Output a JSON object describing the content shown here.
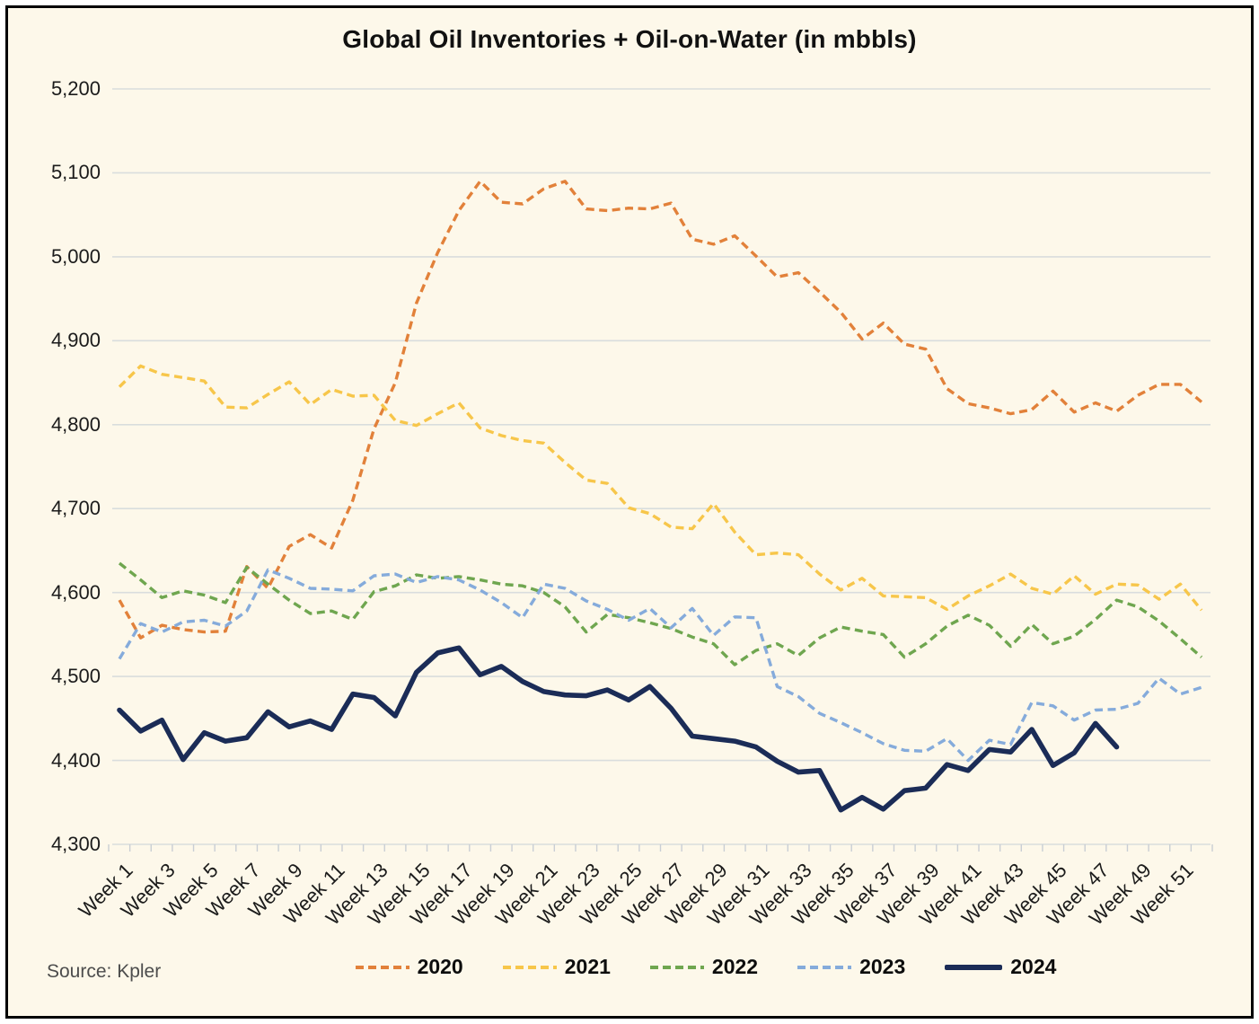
{
  "title": "Global Oil Inventories + Oil-on-Water (in mbbls)",
  "source": "Source: Kpler",
  "colors": {
    "background": "#FDF8EA",
    "gridline": "#D9DDDD",
    "axis_tick": "#C9CED4",
    "text": "#1b1b1b"
  },
  "chart_data": {
    "type": "line",
    "title": "Global Oil Inventories + Oil-on-Water (in mbbls)",
    "xlabel": "",
    "ylabel": "",
    "ylim": [
      4300,
      5200
    ],
    "grid": true,
    "legend_position": "bottom",
    "y_ticks": [
      5200,
      5100,
      5000,
      4900,
      4800,
      4700,
      4600,
      4500,
      4400,
      4300
    ],
    "x_tick_labels": [
      "Week 1",
      "Week 3",
      "Week 5",
      "Week 7",
      "Week 9",
      "Week 11",
      "Week 13",
      "Week 15",
      "Week 17",
      "Week 19",
      "Week 21",
      "Week 23",
      "Week 25",
      "Week 27",
      "Week 29",
      "Week 31",
      "Week 33",
      "Week 35",
      "Week 37",
      "Week 39",
      "Week 41",
      "Week 43",
      "Week 45",
      "Week 47",
      "Week 49",
      "Week 51"
    ],
    "weeks_total": 52,
    "series": [
      {
        "name": "2020",
        "color": "#E2813A",
        "style": "dashed",
        "values": [
          4591,
          4546,
          4561,
          4556,
          4553,
          4554,
          4631,
          4605,
          4655,
          4669,
          4653,
          4710,
          4795,
          4850,
          4945,
          5005,
          5055,
          5090,
          5065,
          5063,
          5081,
          5090,
          5057,
          5055,
          5058,
          5057,
          5064,
          5021,
          5015,
          5025,
          5001,
          4976,
          4981,
          4958,
          4934,
          4902,
          4921,
          4896,
          4890,
          4843,
          4825,
          4820,
          4813,
          4818,
          4840,
          4815,
          4826,
          4816,
          4835,
          4848,
          4848,
          4827
        ]
      },
      {
        "name": "2021",
        "color": "#F7C64A",
        "style": "dashed",
        "values": [
          4845,
          4870,
          4860,
          4856,
          4852,
          4821,
          4820,
          4836,
          4851,
          4824,
          4842,
          4834,
          4835,
          4805,
          4799,
          4813,
          4826,
          4796,
          4787,
          4781,
          4778,
          4755,
          4734,
          4730,
          4701,
          4694,
          4678,
          4676,
          4706,
          4672,
          4645,
          4647,
          4645,
          4622,
          4603,
          4617,
          4596,
          4595,
          4594,
          4580,
          4596,
          4608,
          4622,
          4605,
          4598,
          4620,
          4598,
          4610,
          4609,
          4592,
          4610,
          4579
        ]
      },
      {
        "name": "2022",
        "color": "#6FA64F",
        "style": "dashed",
        "values": [
          4635,
          4615,
          4594,
          4602,
          4597,
          4588,
          4630,
          4610,
          4591,
          4575,
          4578,
          4568,
          4601,
          4608,
          4621,
          4617,
          4619,
          4615,
          4610,
          4608,
          4600,
          4583,
          4553,
          4574,
          4570,
          4564,
          4557,
          4547,
          4539,
          4514,
          4531,
          4539,
          4525,
          4546,
          4559,
          4554,
          4550,
          4523,
          4539,
          4560,
          4573,
          4561,
          4536,
          4562,
          4539,
          4548,
          4568,
          4591,
          4583,
          4566,
          4545,
          4523
        ]
      },
      {
        "name": "2023",
        "color": "#85ABDB",
        "style": "dashed",
        "values": [
          4521,
          4563,
          4553,
          4565,
          4567,
          4560,
          4578,
          4627,
          4617,
          4605,
          4604,
          4602,
          4620,
          4622,
          4612,
          4619,
          4615,
          4603,
          4588,
          4570,
          4610,
          4605,
          4590,
          4580,
          4567,
          4581,
          4558,
          4581,
          4549,
          4571,
          4570,
          4488,
          4476,
          4456,
          4445,
          4433,
          4420,
          4412,
          4411,
          4426,
          4400,
          4424,
          4419,
          4469,
          4465,
          4448,
          4460,
          4461,
          4468,
          4498,
          4479,
          4487
        ]
      },
      {
        "name": "2024",
        "color": "#1B2C57",
        "style": "solid",
        "values": [
          4460,
          4435,
          4448,
          4401,
          4433,
          4423,
          4427,
          4458,
          4440,
          4447,
          4437,
          4479,
          4475,
          4453,
          4505,
          4528,
          4534,
          4502,
          4512,
          4494,
          4482,
          4478,
          4477,
          4484,
          4472,
          4488,
          4462,
          4429,
          4426,
          4423,
          4416,
          4399,
          4386,
          4388,
          4341,
          4356,
          4342,
          4364,
          4367,
          4395,
          4388,
          4413,
          4410,
          4437,
          4394,
          4409,
          4444,
          4416
        ]
      }
    ]
  }
}
